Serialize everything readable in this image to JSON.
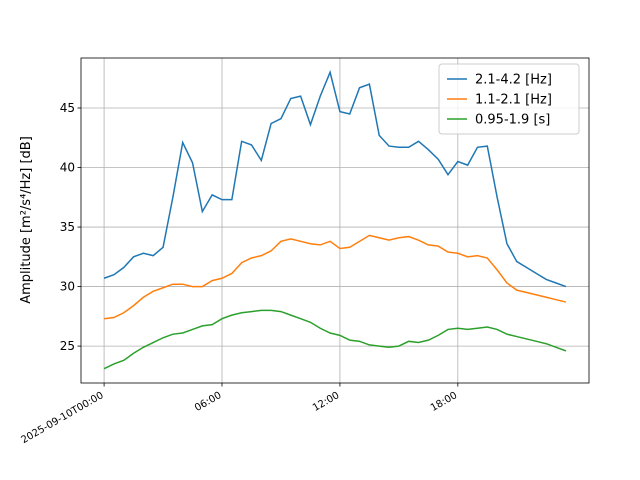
{
  "chart_data": {
    "type": "line",
    "ylabel": "Amplitude [m²/s⁴/Hz] [dB]",
    "x": [
      0,
      0.5,
      1,
      1.5,
      2,
      2.5,
      3,
      3.5,
      4,
      4.5,
      5,
      5.5,
      6,
      6.5,
      7,
      7.5,
      8,
      8.5,
      9,
      9.5,
      10,
      10.5,
      11,
      11.5,
      12,
      12.5,
      13,
      13.5,
      14,
      14.5,
      15,
      15.5,
      16,
      16.5,
      17,
      17.5,
      18,
      18.5,
      19,
      19.5,
      20,
      20.5,
      21,
      21.5,
      22,
      22.5,
      23,
      23.5
    ],
    "series": [
      {
        "name": "2.1-4.2 [Hz]",
        "color": "#1f77b4",
        "values": [
          30.7,
          31.0,
          31.6,
          32.5,
          32.8,
          32.6,
          33.3,
          37.5,
          42.1,
          40.4,
          36.3,
          37.7,
          37.3,
          37.3,
          42.2,
          41.9,
          40.6,
          43.7,
          44.1,
          45.8,
          46.0,
          43.6,
          46.0,
          48.0,
          44.7,
          44.5,
          46.7,
          47.0,
          42.7,
          41.8,
          41.7,
          41.7,
          42.2,
          41.5,
          40.7,
          39.4,
          40.5,
          40.2,
          41.7,
          41.8,
          37.5,
          33.6,
          32.1,
          31.6,
          31.1,
          30.6,
          30.3,
          30.0
        ]
      },
      {
        "name": "1.1-2.1 [Hz]",
        "color": "#ff7f0e",
        "values": [
          27.3,
          27.4,
          27.8,
          28.4,
          29.1,
          29.6,
          29.9,
          30.2,
          30.2,
          30.0,
          30.0,
          30.5,
          30.7,
          31.1,
          32.0,
          32.4,
          32.6,
          33.0,
          33.8,
          34.0,
          33.8,
          33.6,
          33.5,
          33.8,
          33.2,
          33.3,
          33.8,
          34.3,
          34.1,
          33.9,
          34.1,
          34.2,
          33.9,
          33.5,
          33.4,
          32.9,
          32.8,
          32.5,
          32.6,
          32.4,
          31.4,
          30.3,
          29.7,
          29.5,
          29.3,
          29.1,
          28.9,
          28.7
        ]
      },
      {
        "name": "0.95-1.9 [s]",
        "color": "#2ca02c",
        "values": [
          23.1,
          23.5,
          23.8,
          24.4,
          24.9,
          25.3,
          25.7,
          26.0,
          26.1,
          26.4,
          26.7,
          26.8,
          27.3,
          27.6,
          27.8,
          27.9,
          28.0,
          28.0,
          27.9,
          27.6,
          27.3,
          27.0,
          26.5,
          26.1,
          25.9,
          25.5,
          25.4,
          25.1,
          25.0,
          24.9,
          25.0,
          25.4,
          25.3,
          25.5,
          25.9,
          26.4,
          26.5,
          26.4,
          26.5,
          26.6,
          26.4,
          26.0,
          25.8,
          25.6,
          25.4,
          25.2,
          24.9,
          24.6
        ]
      }
    ],
    "xlim": [
      -1.175,
      24.675
    ],
    "xticks": [
      {
        "value": 0,
        "label": "2025-09-10T00:00"
      },
      {
        "value": 6,
        "label": "06:00"
      },
      {
        "value": 12,
        "label": "12:00"
      },
      {
        "value": 18,
        "label": "18:00"
      }
    ],
    "ylim": [
      21.9,
      49.2
    ],
    "yticks": [
      25,
      30,
      35,
      40,
      45
    ],
    "grid": true,
    "legend": "upper right"
  }
}
